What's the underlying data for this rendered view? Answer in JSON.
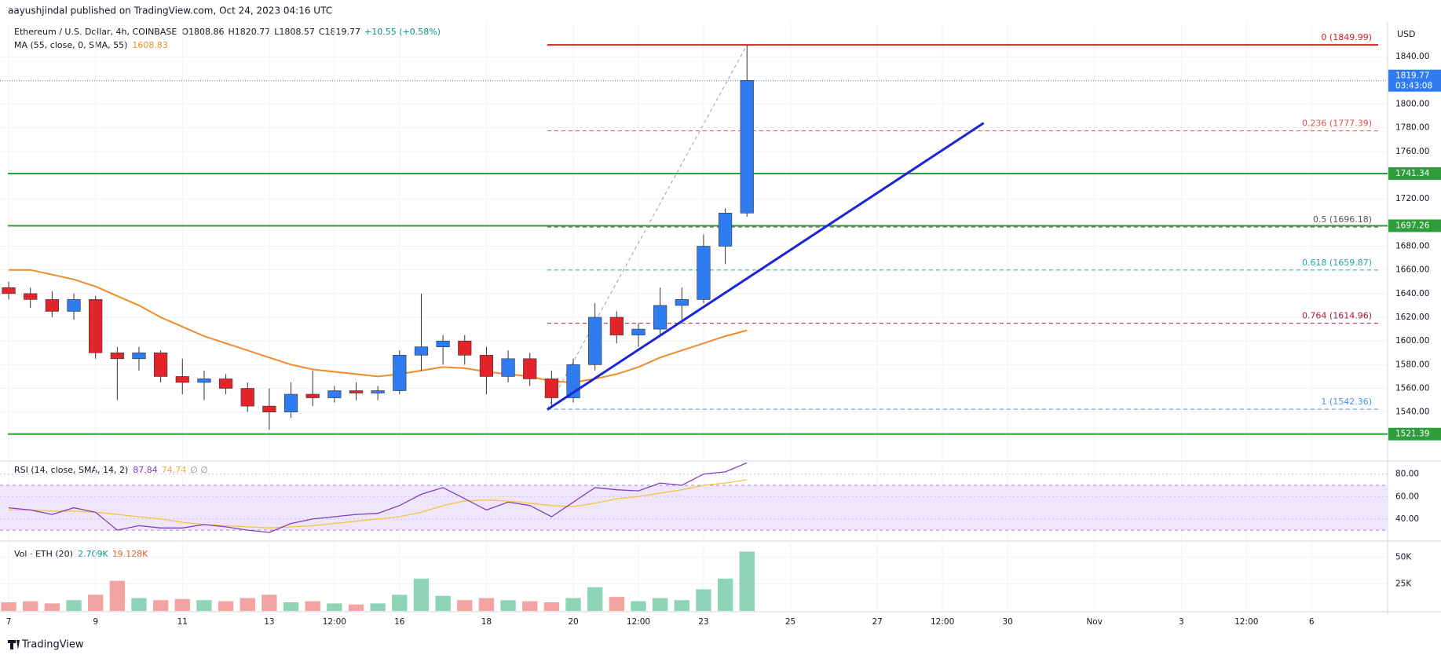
{
  "chart_data": {
    "type": "candlestick",
    "publisher": "aayushjindal published on TradingView.com, Oct 24, 2023 04:16 UTC",
    "title": "Ethereum / U.S. Dollar, 4h, COINBASE",
    "ohlc_legend": [
      "O1808.86",
      "H1820.77",
      "L1808.57",
      "C1819.77",
      "+10.55 (+0.58%)"
    ],
    "currency": "USD",
    "brand": "TradingView",
    "up_color": "#2f7bf2",
    "down_color": "#e3242b",
    "x": [
      0,
      0.5,
      1,
      1.5,
      2,
      2.5,
      3,
      3.5,
      4,
      4.5,
      5,
      5.5,
      6,
      6.5,
      7,
      7.5,
      8,
      8.5,
      9,
      9.5,
      10,
      10.5,
      11,
      11.5,
      12,
      12.5,
      13,
      13.5,
      14,
      14.5,
      15,
      15.5,
      16,
      16.5,
      17
    ],
    "open": [
      1645,
      1640,
      1635,
      1625,
      1635,
      1590,
      1585,
      1590,
      1570,
      1565,
      1568,
      1560,
      1545,
      1540,
      1555,
      1552,
      1558,
      1556,
      1558,
      1588,
      1595,
      1600,
      1588,
      1570,
      1585,
      1568,
      1552,
      1580,
      1620,
      1605,
      1610,
      1630,
      1635,
      1680,
      1708
    ],
    "high": [
      1650,
      1645,
      1642,
      1640,
      1638,
      1595,
      1595,
      1592,
      1585,
      1575,
      1572,
      1565,
      1560,
      1565,
      1575,
      1562,
      1565,
      1562,
      1592,
      1640,
      1605,
      1605,
      1595,
      1592,
      1590,
      1575,
      1585,
      1632,
      1625,
      1615,
      1645,
      1645,
      1690,
      1712,
      1850
    ],
    "low": [
      1635,
      1628,
      1620,
      1618,
      1585,
      1550,
      1575,
      1565,
      1555,
      1550,
      1555,
      1540,
      1525,
      1535,
      1545,
      1548,
      1550,
      1550,
      1555,
      1575,
      1580,
      1580,
      1555,
      1565,
      1562,
      1545,
      1548,
      1575,
      1598,
      1595,
      1605,
      1618,
      1632,
      1665,
      1705
    ],
    "close": [
      1640,
      1635,
      1625,
      1635,
      1590,
      1585,
      1590,
      1570,
      1565,
      1568,
      1560,
      1545,
      1540,
      1555,
      1552,
      1558,
      1556,
      1558,
      1588,
      1595,
      1600,
      1588,
      1570,
      1585,
      1568,
      1552,
      1580,
      1620,
      1605,
      1610,
      1630,
      1635,
      1680,
      1708,
      1820
    ],
    "ma": {
      "name": "MA (55, close, 0, SMA, 55)",
      "last": "1608.83",
      "color": "#f08c28",
      "values": [
        1660,
        1660,
        1656,
        1652,
        1646,
        1638,
        1630,
        1620,
        1612,
        1604,
        1598,
        1592,
        1586,
        1580,
        1576,
        1574,
        1572,
        1570,
        1572,
        1575,
        1578,
        1577,
        1574,
        1572,
        1570,
        1566,
        1565,
        1568,
        1572,
        1578,
        1586,
        1592,
        1598,
        1604,
        1609
      ]
    },
    "xlim": [
      -0.2,
      31.75
    ],
    "xticks": [
      {
        "value": 0,
        "label": "7"
      },
      {
        "value": 2,
        "label": "9"
      },
      {
        "value": 4,
        "label": "11"
      },
      {
        "value": 6,
        "label": "13"
      },
      {
        "value": 7.5,
        "label": "12:00"
      },
      {
        "value": 9,
        "label": "16"
      },
      {
        "value": 11,
        "label": "18"
      },
      {
        "value": 13,
        "label": "20"
      },
      {
        "value": 14.5,
        "label": "12:00"
      },
      {
        "value": 16,
        "label": "23"
      },
      {
        "value": 18,
        "label": "25"
      },
      {
        "value": 20,
        "label": "27"
      },
      {
        "value": 21.5,
        "label": "12:00"
      },
      {
        "value": 23,
        "label": "30"
      },
      {
        "value": 25,
        "label": "Nov"
      },
      {
        "value": 27,
        "label": "3"
      },
      {
        "value": 28.5,
        "label": "12:00"
      },
      {
        "value": 30,
        "label": "6"
      }
    ],
    "ylim": [
      1500,
      1866
    ],
    "yticks": [
      {
        "value": 1540,
        "label": "1540.00"
      },
      {
        "value": 1560,
        "label": "1560.00"
      },
      {
        "value": 1580,
        "label": "1580.00"
      },
      {
        "value": 1600,
        "label": "1600.00"
      },
      {
        "value": 1620,
        "label": "1620.00"
      },
      {
        "value": 1640,
        "label": "1640.00"
      },
      {
        "value": 1660,
        "label": "1660.00"
      },
      {
        "value": 1680,
        "label": "1680.00"
      },
      {
        "value": 1720,
        "label": "1720.00"
      },
      {
        "value": 1760,
        "label": "1760.00"
      },
      {
        "value": 1780,
        "label": "1780.00"
      },
      {
        "value": 1800,
        "label": "1800.00"
      },
      {
        "value": 1840,
        "label": "1840.00"
      }
    ],
    "levels": {
      "color": "#2e9e3a",
      "values": [
        1741.34,
        1697.26,
        1521.39
      ]
    },
    "fib": {
      "start": 12.4,
      "levels": [
        {
          "value": 1849.99,
          "label": "0 (1849.99)",
          "color": "#d81e1e"
        },
        {
          "value": 1777.39,
          "label": "0.236 (1777.39)",
          "color": "#e05050"
        },
        {
          "value": 1696.18,
          "label": "0.5 (1696.18)",
          "color": "#555555"
        },
        {
          "value": 1659.87,
          "label": "0.618 (1659.87)",
          "color": "#26a69a"
        },
        {
          "value": 1614.96,
          "label": "0.764 (1614.96)",
          "color": "#b2183a"
        },
        {
          "value": 1542.36,
          "label": "1 (1542.36)",
          "color": "#4a90e2"
        }
      ]
    },
    "trendline": {
      "x": [
        12.4,
        22.45
      ],
      "y": [
        1542,
        1784
      ],
      "color": "#1a25d6"
    },
    "current_price": 1819.77,
    "countdown": "03:43:08",
    "rsi": {
      "name": "RSI (14, close, SMA, 14, 2)",
      "legend": [
        "87.84",
        "74.74",
        "∅ ∅"
      ],
      "color": "#7e3fbf",
      "ma_color": "#f5c242",
      "values": [
        50,
        48,
        44,
        50,
        46,
        30,
        34,
        32,
        32,
        35,
        33,
        30,
        28,
        36,
        40,
        42,
        44,
        45,
        52,
        62,
        68,
        58,
        48,
        55,
        52,
        42,
        55,
        68,
        66,
        65,
        72,
        70,
        80,
        82,
        90
      ],
      "ma": [
        48,
        48,
        47,
        47,
        46,
        44,
        42,
        40,
        37,
        35,
        34,
        33,
        32,
        33,
        34,
        36,
        38,
        40,
        42,
        46,
        52,
        56,
        57,
        56,
        54,
        52,
        51,
        54,
        58,
        60,
        63,
        66,
        70,
        72,
        75
      ],
      "ylim": [
        21,
        91
      ],
      "band": [
        30,
        70
      ],
      "yticks": [
        {
          "value": 40,
          "label": "40.00"
        },
        {
          "value": 60,
          "label": "60.00"
        },
        {
          "value": 80,
          "label": "80.00"
        }
      ]
    },
    "volume": {
      "name": "Vol · ETH (20)",
      "legend": [
        "2.709K",
        "19.128K"
      ],
      "up_color": "#8fd3b9",
      "down_color": "#f4a3a3",
      "values": [
        8000,
        9000,
        7000,
        10000,
        15000,
        28000,
        12000,
        10000,
        11000,
        10000,
        9000,
        12000,
        15000,
        8000,
        9000,
        7000,
        6000,
        7000,
        15000,
        30000,
        14000,
        10000,
        12000,
        10000,
        9000,
        8000,
        12000,
        22000,
        13000,
        9000,
        12000,
        10000,
        20000,
        30000,
        55000
      ],
      "ylim": [
        0,
        64000
      ],
      "yticks": [
        {
          "value": 25000,
          "label": "25K"
        },
        {
          "value": 50000,
          "label": "50K"
        }
      ]
    }
  }
}
